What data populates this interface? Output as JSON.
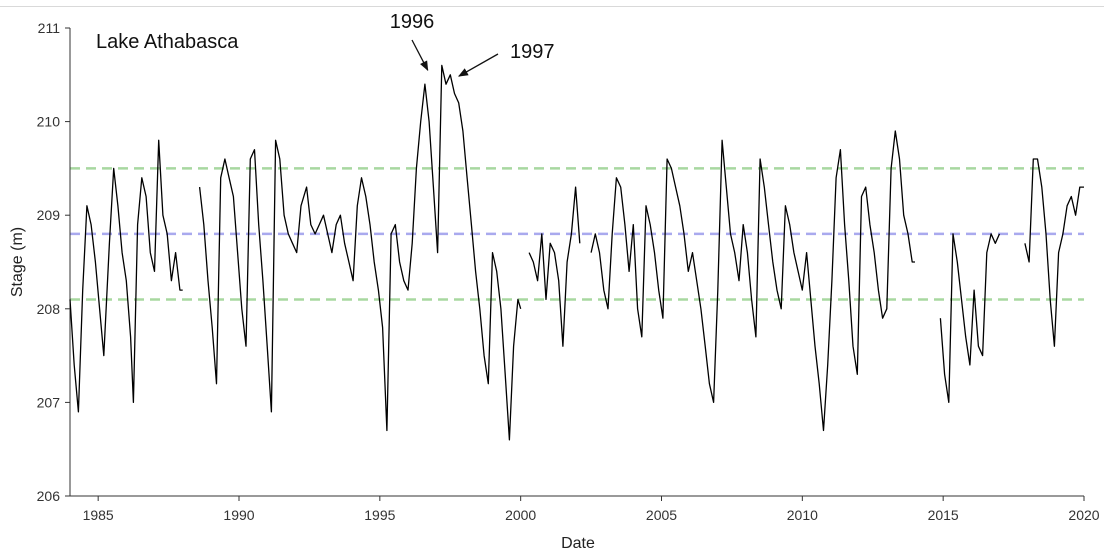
{
  "chart_data": {
    "type": "line",
    "title": "Lake Athabasca",
    "xlabel": "Date",
    "ylabel": "Stage (m)",
    "xlim": [
      1984.0,
      2020.0
    ],
    "ylim": [
      206,
      211
    ],
    "x_ticks": [
      1985,
      1990,
      1995,
      2000,
      2005,
      2010,
      2015,
      2020
    ],
    "y_ticks": [
      206,
      207,
      208,
      209,
      210,
      211
    ],
    "grid": false,
    "reference_lines": [
      {
        "y": 209.5,
        "color": "#a8d8a0",
        "style": "dashed"
      },
      {
        "y": 208.8,
        "color": "#a9a9ee",
        "style": "dashed"
      },
      {
        "y": 208.1,
        "color": "#a8d8a0",
        "style": "dashed"
      }
    ],
    "annotations": [
      {
        "text": "1996",
        "x": 1996.7,
        "y": 210.4
      },
      {
        "text": "1997",
        "x": 1997.7,
        "y": 210.4
      }
    ],
    "series": [
      {
        "color": "#000000",
        "x": [
          1984.0,
          1984.15,
          1984.3,
          1984.45,
          1984.6,
          1984.75,
          1984.9,
          1985.05,
          1985.2,
          1985.4,
          1985.55,
          1985.7,
          1985.85,
          1986.0,
          1986.15,
          1986.25,
          1986.4,
          1986.55,
          1986.7,
          1986.85,
          1987.0,
          1987.15,
          1987.3,
          1987.45,
          1987.6,
          1987.75,
          1987.9,
          1988.0,
          null,
          1988.6,
          1988.75,
          1988.9,
          1989.05,
          1989.2,
          1989.35,
          1989.5,
          1989.65,
          1989.8,
          1989.95,
          1990.1,
          1990.25,
          1990.4,
          1990.55,
          1990.7,
          1990.85,
          1991.0,
          1991.15,
          1991.3,
          1991.45,
          1991.6,
          1991.75,
          1991.9,
          1992.05,
          1992.2,
          1992.4,
          1992.55,
          1992.7,
          1992.85,
          1993.0,
          1993.15,
          1993.3,
          1993.45,
          1993.6,
          1993.75,
          1993.9,
          1994.05,
          1994.2,
          1994.35,
          1994.5,
          1994.65,
          1994.8,
          1994.95,
          1995.1,
          1995.25,
          1995.4,
          1995.55,
          1995.7,
          1995.85,
          1996.0,
          1996.15,
          1996.3,
          1996.45,
          1996.6,
          1996.75,
          1996.9,
          1997.05,
          1997.2,
          1997.35,
          1997.5,
          1997.65,
          1997.8,
          1997.95,
          1998.1,
          1998.25,
          1998.4,
          1998.55,
          1998.7,
          1998.85,
          1999.0,
          1999.15,
          1999.3,
          1999.45,
          1999.6,
          1999.75,
          1999.9,
          2000.0,
          null,
          2000.3,
          2000.45,
          2000.6,
          2000.75,
          2000.9,
          2001.05,
          2001.2,
          2001.35,
          2001.5,
          2001.65,
          2001.8,
          2001.95,
          2002.1,
          null,
          2002.5,
          2002.65,
          2002.8,
          2002.95,
          2003.1,
          2003.25,
          2003.4,
          2003.55,
          2003.7,
          2003.85,
          2004.0,
          2004.15,
          2004.3,
          2004.45,
          2004.6,
          2004.75,
          2004.9,
          2005.05,
          2005.2,
          2005.35,
          2005.5,
          2005.65,
          2005.8,
          2005.95,
          2006.1,
          2006.25,
          2006.4,
          2006.55,
          2006.7,
          2006.85,
          2007.0,
          2007.15,
          2007.3,
          2007.45,
          2007.6,
          2007.75,
          2007.9,
          2008.05,
          2008.2,
          2008.35,
          2008.5,
          2008.65,
          2008.8,
          2008.95,
          2009.1,
          2009.25,
          2009.4,
          2009.55,
          2009.7,
          2009.85,
          2010.0,
          2010.15,
          2010.3,
          2010.45,
          2010.6,
          2010.75,
          2010.9,
          2011.05,
          2011.2,
          2011.35,
          2011.5,
          2011.65,
          2011.8,
          2011.95,
          2012.1,
          2012.25,
          2012.4,
          2012.55,
          2012.7,
          2012.85,
          2013.0,
          2013.15,
          2013.3,
          2013.45,
          2013.6,
          2013.75,
          2013.9,
          2014.0,
          null,
          2014.9,
          2015.05,
          2015.2,
          2015.35,
          2015.5,
          2015.65,
          2015.8,
          2015.95,
          2016.1,
          2016.25,
          2016.4,
          2016.55,
          2016.7,
          2016.85,
          2017.0,
          null,
          2017.9,
          2018.05,
          2018.2,
          2018.35,
          2018.5,
          2018.65,
          2018.8,
          2018.95,
          2019.1,
          2019.25,
          2019.4,
          2019.55,
          2019.7,
          2019.85,
          2020.0
        ],
        "y": [
          208.1,
          207.4,
          206.9,
          208.2,
          209.1,
          208.9,
          208.5,
          208.0,
          207.5,
          208.7,
          209.5,
          209.1,
          208.6,
          208.3,
          207.7,
          207.0,
          208.9,
          209.4,
          209.2,
          208.6,
          208.4,
          209.8,
          209.0,
          208.8,
          208.3,
          208.6,
          208.2,
          208.2,
          null,
          209.3,
          208.9,
          208.3,
          207.8,
          207.2,
          209.4,
          209.6,
          209.4,
          209.2,
          208.6,
          208.0,
          207.6,
          209.6,
          209.7,
          208.9,
          208.3,
          207.6,
          206.9,
          209.8,
          209.6,
          209.0,
          208.8,
          208.7,
          208.6,
          209.1,
          209.3,
          208.9,
          208.8,
          208.9,
          209.0,
          208.8,
          208.6,
          208.9,
          209.0,
          208.7,
          208.5,
          208.3,
          209.1,
          209.4,
          209.2,
          208.9,
          208.5,
          208.2,
          207.8,
          206.7,
          208.8,
          208.9,
          208.5,
          208.3,
          208.2,
          208.7,
          209.5,
          210.0,
          210.4,
          210.0,
          209.3,
          208.6,
          210.6,
          210.4,
          210.5,
          210.3,
          210.2,
          209.9,
          209.4,
          208.9,
          208.4,
          208.0,
          207.5,
          207.2,
          208.6,
          208.4,
          208.0,
          207.3,
          206.6,
          207.6,
          208.1,
          208.0,
          null,
          208.6,
          208.5,
          208.3,
          208.8,
          208.1,
          208.7,
          208.6,
          208.3,
          207.6,
          208.5,
          208.8,
          209.3,
          208.7,
          null,
          208.6,
          208.8,
          208.6,
          208.2,
          208.0,
          208.8,
          209.4,
          209.3,
          208.9,
          208.4,
          208.9,
          208.0,
          207.7,
          209.1,
          208.9,
          208.6,
          208.2,
          207.9,
          209.6,
          209.5,
          209.3,
          209.1,
          208.8,
          208.4,
          208.6,
          208.3,
          208.0,
          207.6,
          207.2,
          207.0,
          208.2,
          209.8,
          209.3,
          208.8,
          208.6,
          208.3,
          208.9,
          208.6,
          208.1,
          207.7,
          209.6,
          209.3,
          208.9,
          208.5,
          208.2,
          208.0,
          209.1,
          208.9,
          208.6,
          208.4,
          208.2,
          208.6,
          208.1,
          207.6,
          207.2,
          206.7,
          207.4,
          208.3,
          209.4,
          209.7,
          208.9,
          208.3,
          207.6,
          207.3,
          209.2,
          209.3,
          208.9,
          208.6,
          208.2,
          207.9,
          208.0,
          209.5,
          209.9,
          209.6,
          209.0,
          208.8,
          208.5,
          208.5,
          null,
          207.9,
          207.3,
          207.0,
          208.8,
          208.5,
          208.1,
          207.7,
          207.4,
          208.2,
          207.6,
          207.5,
          208.6,
          208.8,
          208.7,
          208.8,
          null,
          208.7,
          208.5,
          209.6,
          209.6,
          209.3,
          208.8,
          208.1,
          207.6,
          208.6,
          208.8,
          209.1,
          209.2,
          209.0,
          209.3,
          209.3
        ]
      }
    ]
  }
}
